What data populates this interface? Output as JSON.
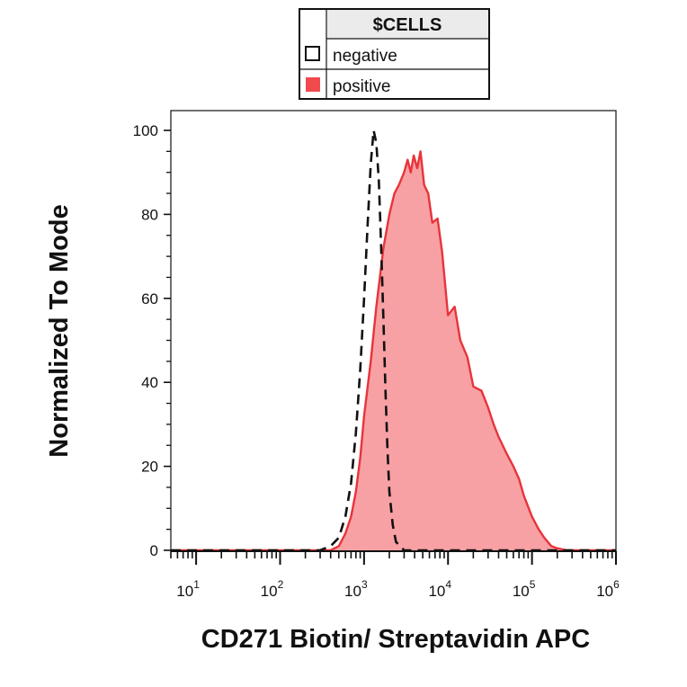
{
  "chart_data": {
    "type": "histogram",
    "title": "",
    "xlabel": "CD271 Biotin/ Streptavidin APC",
    "ylabel": "Normalized To Mode",
    "x_scale": "log",
    "xlim": [
      5,
      1000000
    ],
    "ylim": [
      0,
      100
    ],
    "x_ticks": [
      {
        "base": "10",
        "exp": "1",
        "value": 10
      },
      {
        "base": "10",
        "exp": "2",
        "value": 100
      },
      {
        "base": "10",
        "exp": "3",
        "value": 1000
      },
      {
        "base": "10",
        "exp": "4",
        "value": 10000
      },
      {
        "base": "10",
        "exp": "5",
        "value": 100000
      },
      {
        "base": "10",
        "exp": "6",
        "value": 1000000
      }
    ],
    "y_ticks": [
      "0",
      "20",
      "40",
      "60",
      "80",
      "100"
    ],
    "legend": {
      "title": "$CELLS",
      "placement": "top-center",
      "entries": [
        {
          "label": "negative",
          "style": "dashed-outline"
        },
        {
          "label": "positive",
          "style": "filled"
        }
      ]
    },
    "series": [
      {
        "name": "negative",
        "color": "#111111",
        "style": "dashed",
        "fill": "none",
        "x": [
          5,
          100,
          300,
          400,
          500,
          600,
          700,
          800,
          900,
          1000,
          1100,
          1200,
          1300,
          1400,
          1500,
          1600,
          1700,
          1800,
          1900,
          2000,
          2200,
          2400,
          2700,
          3000,
          4000,
          10000,
          1000000
        ],
        "y": [
          0,
          0,
          0,
          1,
          3,
          8,
          16,
          28,
          43,
          60,
          77,
          92,
          100,
          97,
          88,
          72,
          55,
          38,
          24,
          14,
          6,
          2,
          1,
          0,
          0,
          0,
          0
        ]
      },
      {
        "name": "positive",
        "color": "#e8343a",
        "fill": "#f7a1a5",
        "x": [
          5,
          200,
          300,
          400,
          500,
          600,
          700,
          800,
          900,
          1000,
          1200,
          1400,
          1700,
          2000,
          2300,
          2600,
          3000,
          3300,
          3600,
          3900,
          4300,
          4700,
          5200,
          5800,
          6500,
          7500,
          8500,
          10000,
          12000,
          14000,
          17000,
          20000,
          25000,
          30000,
          35000,
          40000,
          50000,
          60000,
          70000,
          80000,
          100000,
          120000,
          140000,
          170000,
          200000,
          260000,
          350000,
          1000000
        ],
        "y": [
          0,
          0,
          0,
          0,
          1,
          4,
          8,
          14,
          22,
          32,
          45,
          58,
          72,
          80,
          85,
          87,
          90,
          93,
          90,
          94,
          91,
          95,
          87,
          85,
          78,
          79,
          71,
          56,
          58,
          50,
          46,
          39,
          38,
          34,
          30,
          27,
          23,
          20,
          17,
          13,
          8,
          5,
          3,
          1,
          0.5,
          0,
          0,
          0
        ]
      }
    ]
  }
}
